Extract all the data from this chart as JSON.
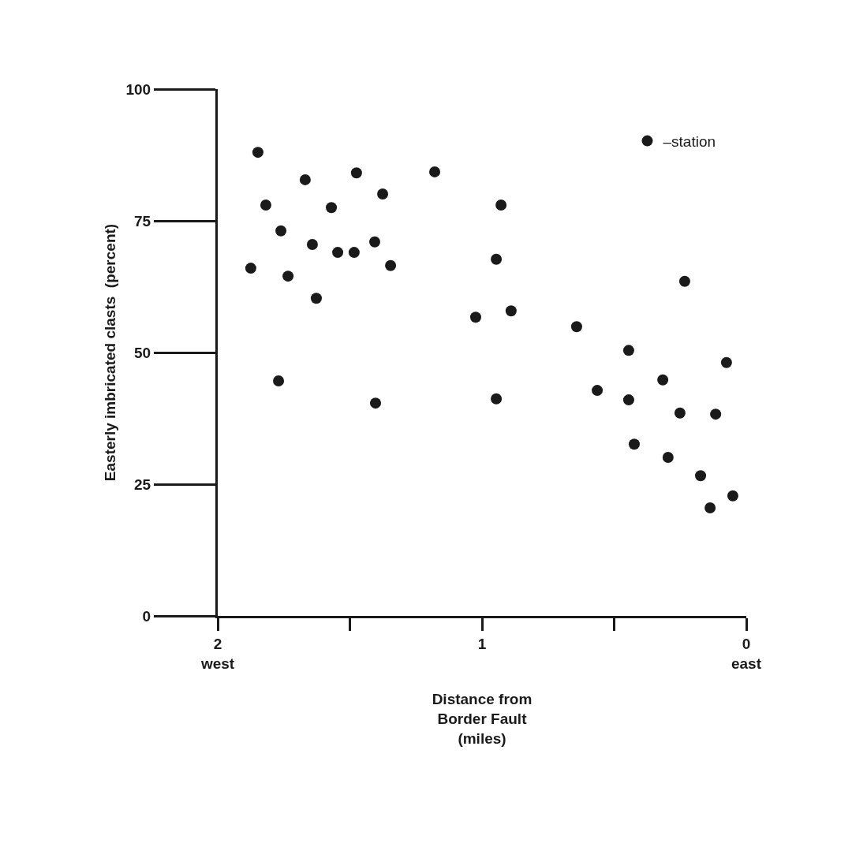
{
  "chart_data": {
    "type": "scatter",
    "xlabel": "Distance from\nBorder Fault\n(miles)",
    "ylabel": "Easterly imbricated clasts  (percent)",
    "xlim": [
      2,
      0
    ],
    "ylim": [
      0,
      100
    ],
    "xticks": [
      {
        "value": 2,
        "label": "2\nwest"
      },
      {
        "value": 1.5,
        "label": null
      },
      1,
      {
        "value": 0.5,
        "label": null
      },
      {
        "value": 0,
        "label": "0\neast"
      }
    ],
    "yticks": [
      0,
      25,
      50,
      75,
      100
    ],
    "legend": "top right",
    "marker": "circle",
    "series": [
      {
        "name": "–station",
        "color": "#1a1a1a",
        "x": [
          1.875,
          1.848,
          1.818,
          1.761,
          1.77,
          1.734,
          1.669,
          1.642,
          1.627,
          1.57,
          1.546,
          1.484,
          1.475,
          1.406,
          1.403,
          1.376,
          1.346,
          1.179,
          1.024,
          0.946,
          0.928,
          0.946,
          0.89,
          0.642,
          0.564,
          0.445,
          0.445,
          0.424,
          0.316,
          0.296,
          0.251,
          0.233,
          0.173,
          0.137,
          0.116,
          0.075,
          0.051
        ],
        "values": [
          66.0,
          88.0,
          78.0,
          73.1,
          44.6,
          64.5,
          82.8,
          70.5,
          60.3,
          77.5,
          69.0,
          69.0,
          84.1,
          71.0,
          40.4,
          80.1,
          66.5,
          84.3,
          56.7,
          67.7,
          78.0,
          41.2,
          57.9,
          54.9,
          42.8,
          50.4,
          41.0,
          32.6,
          44.8,
          30.1,
          38.5,
          63.5,
          26.6,
          20.5,
          38.3,
          48.1,
          22.8
        ]
      }
    ]
  }
}
